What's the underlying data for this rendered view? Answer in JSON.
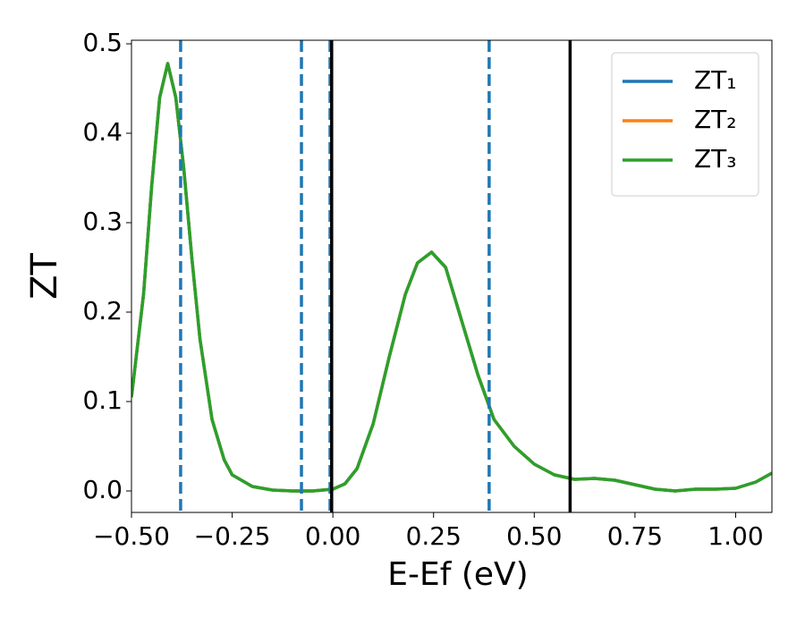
{
  "chart_data": {
    "type": "line",
    "xlabel": "E-Ef (eV)",
    "ylabel": "ZT",
    "x": [
      -0.5,
      -0.47,
      -0.45,
      -0.43,
      -0.41,
      -0.39,
      -0.37,
      -0.35,
      -0.33,
      -0.3,
      -0.27,
      -0.25,
      -0.2,
      -0.15,
      -0.1,
      -0.05,
      0.0,
      0.03,
      0.06,
      0.1,
      0.14,
      0.18,
      0.21,
      0.245,
      0.28,
      0.32,
      0.36,
      0.4,
      0.45,
      0.5,
      0.55,
      0.6,
      0.65,
      0.7,
      0.75,
      0.8,
      0.85,
      0.9,
      0.95,
      1.0,
      1.05,
      1.09
    ],
    "series": [
      {
        "name": "ZT₁",
        "color": "#1f77b4",
        "values": [
          0.105,
          0.22,
          0.34,
          0.44,
          0.478,
          0.44,
          0.36,
          0.26,
          0.17,
          0.08,
          0.035,
          0.018,
          0.005,
          0.001,
          0.0,
          0.0,
          0.002,
          0.008,
          0.025,
          0.075,
          0.15,
          0.22,
          0.255,
          0.267,
          0.25,
          0.19,
          0.13,
          0.08,
          0.05,
          0.03,
          0.018,
          0.013,
          0.014,
          0.012,
          0.007,
          0.002,
          0.0,
          0.002,
          0.002,
          0.003,
          0.01,
          0.02
        ]
      },
      {
        "name": "ZT₂",
        "color": "#ff7f0e",
        "values": [
          0.105,
          0.22,
          0.34,
          0.44,
          0.478,
          0.44,
          0.36,
          0.26,
          0.17,
          0.08,
          0.035,
          0.018,
          0.005,
          0.001,
          0.0,
          0.0,
          0.002,
          0.008,
          0.025,
          0.075,
          0.15,
          0.22,
          0.255,
          0.267,
          0.25,
          0.19,
          0.13,
          0.08,
          0.05,
          0.03,
          0.018,
          0.013,
          0.014,
          0.012,
          0.007,
          0.002,
          0.0,
          0.002,
          0.002,
          0.003,
          0.01,
          0.02
        ]
      },
      {
        "name": "ZT₃",
        "color": "#2ca02c",
        "values": [
          0.105,
          0.22,
          0.34,
          0.44,
          0.478,
          0.44,
          0.36,
          0.26,
          0.17,
          0.08,
          0.035,
          0.018,
          0.005,
          0.001,
          0.0,
          0.0,
          0.002,
          0.008,
          0.025,
          0.075,
          0.15,
          0.22,
          0.255,
          0.267,
          0.25,
          0.19,
          0.13,
          0.08,
          0.05,
          0.03,
          0.018,
          0.013,
          0.014,
          0.012,
          0.007,
          0.002,
          0.0,
          0.002,
          0.002,
          0.003,
          0.01,
          0.02
        ]
      }
    ],
    "vlines": [
      {
        "x": -0.378,
        "color": "#1f77b4",
        "style": "dashed"
      },
      {
        "x": -0.078,
        "color": "#1f77b4",
        "style": "dashed"
      },
      {
        "x": -0.007,
        "color": "#1f77b4",
        "style": "dashed"
      },
      {
        "x": 0.388,
        "color": "#1f77b4",
        "style": "dashed"
      },
      {
        "x": -0.003,
        "color": "#000000",
        "style": "solid"
      },
      {
        "x": 0.589,
        "color": "#000000",
        "style": "solid"
      }
    ],
    "xlim": [
      -0.5,
      1.09
    ],
    "ylim": [
      -0.024,
      0.504
    ],
    "xticks": [
      {
        "value": -0.5,
        "label": "−0.50"
      },
      {
        "value": -0.25,
        "label": "−0.25"
      },
      {
        "value": 0,
        "label": "0.00"
      },
      0.25,
      {
        "value": 0.5,
        "label": "0.50"
      },
      0.75,
      {
        "value": 1,
        "label": "1.00"
      }
    ],
    "yticks": [
      {
        "value": 0,
        "label": "0.0"
      },
      0.1,
      0.2,
      0.3,
      0.4,
      0.5
    ],
    "grid": false,
    "legend": "upper right"
  }
}
